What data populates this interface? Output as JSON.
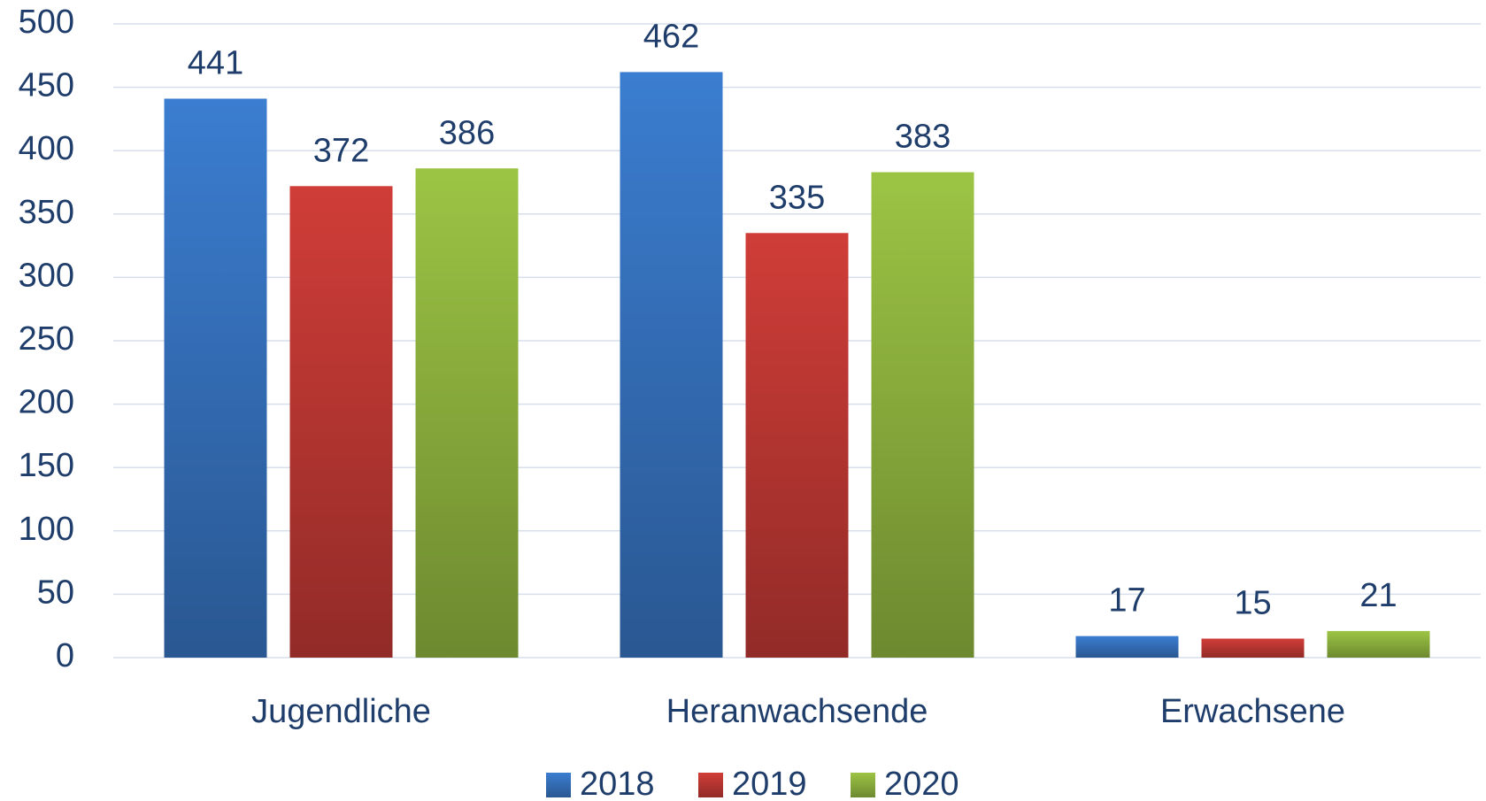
{
  "chart_data": {
    "type": "bar",
    "categories": [
      "Jugendliche",
      "Heranwachsende",
      "Erwachsene"
    ],
    "series": [
      {
        "name": "2018",
        "color": "#3b7dd0",
        "values": [
          441,
          462,
          17
        ]
      },
      {
        "name": "2019",
        "color": "#d03d38",
        "values": [
          372,
          335,
          15
        ]
      },
      {
        "name": "2020",
        "color": "#9cc444",
        "values": [
          386,
          383,
          21
        ]
      }
    ],
    "ylim": [
      0,
      500
    ],
    "yticks": [
      0,
      50,
      100,
      150,
      200,
      250,
      300,
      350,
      400,
      450,
      500
    ],
    "grid": true,
    "legend": "bottom"
  }
}
